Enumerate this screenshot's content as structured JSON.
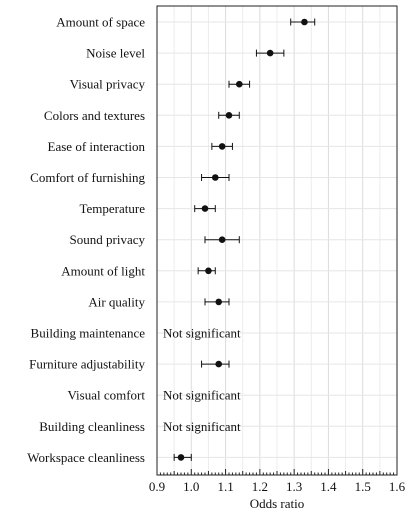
{
  "chart_data": {
    "type": "scatter",
    "orientation": "horizontal-forest-plot",
    "xlabel": "Odds ratio",
    "xlim": [
      0.9,
      1.6
    ],
    "xticks": [
      "0.9",
      "1.0",
      "1.1",
      "1.2",
      "1.3",
      "1.4",
      "1.5",
      "1.6"
    ],
    "grid": true,
    "categories": [
      "Amount of space",
      "Noise level",
      "Visual privacy",
      "Colors and textures",
      "Ease of interaction",
      "Comfort of furnishing",
      "Temperature",
      "Sound privacy",
      "Amount of light",
      "Air quality",
      "Building maintenance",
      "Furniture adjustability",
      "Visual comfort",
      "Building cleanliness",
      "Workspace cleanliness"
    ],
    "points": [
      {
        "category": "Amount of space",
        "value": 1.33,
        "ci_low": 1.29,
        "ci_high": 1.36
      },
      {
        "category": "Noise level",
        "value": 1.23,
        "ci_low": 1.19,
        "ci_high": 1.27
      },
      {
        "category": "Visual privacy",
        "value": 1.14,
        "ci_low": 1.11,
        "ci_high": 1.17
      },
      {
        "category": "Colors and textures",
        "value": 1.11,
        "ci_low": 1.08,
        "ci_high": 1.14
      },
      {
        "category": "Ease of interaction",
        "value": 1.09,
        "ci_low": 1.06,
        "ci_high": 1.12
      },
      {
        "category": "Comfort of furnishing",
        "value": 1.07,
        "ci_low": 1.03,
        "ci_high": 1.11
      },
      {
        "category": "Temperature",
        "value": 1.04,
        "ci_low": 1.01,
        "ci_high": 1.07
      },
      {
        "category": "Sound privacy",
        "value": 1.09,
        "ci_low": 1.04,
        "ci_high": 1.14
      },
      {
        "category": "Amount of light",
        "value": 1.05,
        "ci_low": 1.02,
        "ci_high": 1.07
      },
      {
        "category": "Air quality",
        "value": 1.08,
        "ci_low": 1.04,
        "ci_high": 1.11
      },
      {
        "category": "Building maintenance",
        "value": null,
        "note": "Not significant"
      },
      {
        "category": "Furniture adjustability",
        "value": 1.08,
        "ci_low": 1.03,
        "ci_high": 1.11
      },
      {
        "category": "Visual comfort",
        "value": null,
        "note": "Not significant"
      },
      {
        "category": "Building cleanliness",
        "value": null,
        "note": "Not significant"
      },
      {
        "category": "Workspace cleanliness",
        "value": 0.97,
        "ci_low": 0.95,
        "ci_high": 1.0
      }
    ]
  }
}
